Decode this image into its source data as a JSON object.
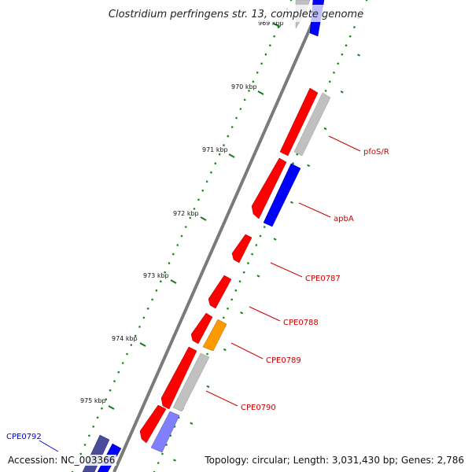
{
  "title": "Clostridium perfringens str. 13, complete genome",
  "footer": {
    "accession": "Accession: NC_003366",
    "topology": "Topology: circular; Length: 3,031,430 bp; Genes: 2,786"
  },
  "ticks": [
    {
      "label": "969 kbp"
    },
    {
      "label": "970 kbp"
    },
    {
      "label": "971 kbp"
    },
    {
      "label": "972 kbp"
    },
    {
      "label": "973 kbp"
    },
    {
      "label": "974 kbp"
    },
    {
      "label": "975 kbp"
    }
  ],
  "gene_labels": [
    {
      "name": "pfoS/R"
    },
    {
      "name": "apbA"
    },
    {
      "name": "CPE0787"
    },
    {
      "name": "CPE0788"
    },
    {
      "name": "CPE0789"
    },
    {
      "name": "CPE0790"
    },
    {
      "name": "CPE0792"
    }
  ],
  "colors": {
    "forward_gene": "#ff0000",
    "reverse_gene": "#0000ff",
    "other_feature": "#c0c0c0",
    "orange_feature": "#ff9900",
    "purple_feature": "#8080ff",
    "dark_purple_feature": "#4b4b9b",
    "tick_marks": "#006600",
    "backbone": "#777777",
    "forward_label": "#cc0000",
    "reverse_label": "#0000cc"
  }
}
